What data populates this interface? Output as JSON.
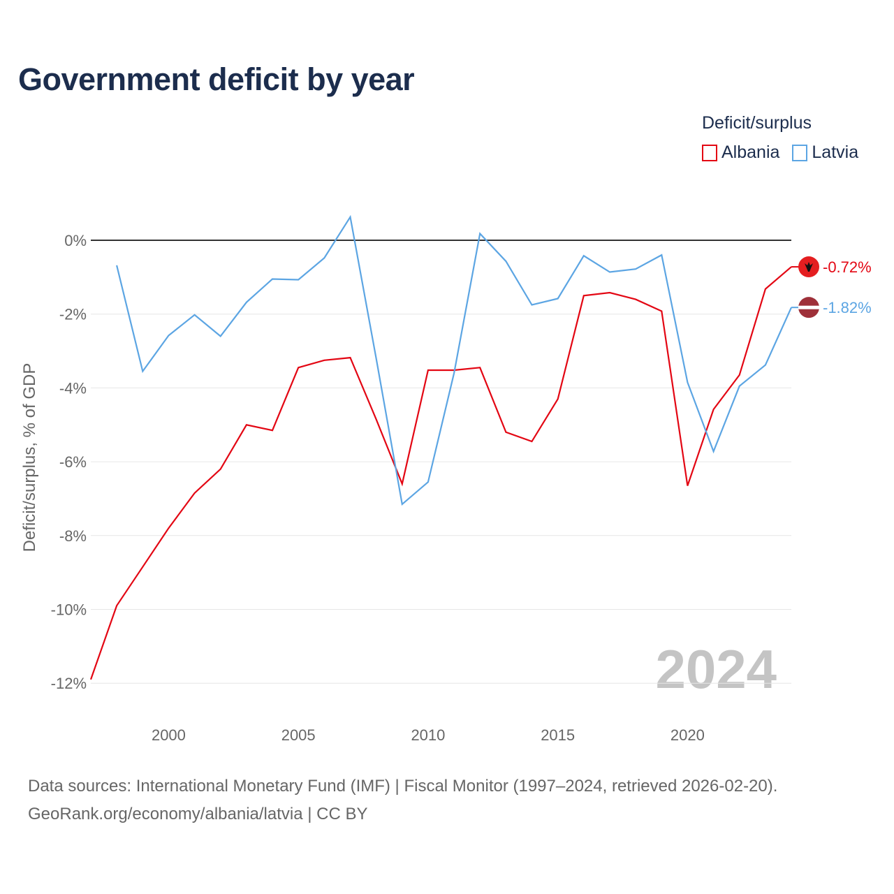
{
  "title": "Government deficit by year",
  "legend": {
    "title": "Deficit/surplus",
    "items": [
      {
        "label": "Albania",
        "color": "#e30613"
      },
      {
        "label": "Latvia",
        "color": "#5ca5e3"
      }
    ]
  },
  "year_watermark": "2024",
  "footer": {
    "line1": "Data sources: International Monetary Fund (IMF) | Fiscal Monitor (1997–2024, retrieved 2026-02-20).",
    "line2": "GeoRank.org/economy/albania/latvia | CC BY"
  },
  "chart_data": {
    "type": "line",
    "title": "Government deficit by year",
    "ylabel": "Deficit/surplus, % of GDP",
    "xlabel": "",
    "xlim": [
      1997,
      2024
    ],
    "ylim": [
      -12.5,
      0.8
    ],
    "x_ticks": [
      2000,
      2005,
      2010,
      2015,
      2020
    ],
    "x_tick_labels": [
      "2000",
      "2005",
      "2010",
      "2015",
      "2020"
    ],
    "y_ticks": [
      0,
      -2,
      -4,
      -6,
      -8,
      -10,
      -12
    ],
    "y_tick_labels": [
      "0%",
      "-2%",
      "-4%",
      "-6%",
      "-8%",
      "-10%",
      "-12%"
    ],
    "grid": true,
    "legend_position": "top-right",
    "series": [
      {
        "name": "Albania",
        "color": "#e30613",
        "end_label": "-0.72%",
        "x": [
          1997,
          1998,
          1999,
          2000,
          2001,
          2002,
          2003,
          2004,
          2005,
          2006,
          2007,
          2008,
          2009,
          2010,
          2011,
          2012,
          2013,
          2014,
          2015,
          2016,
          2017,
          2018,
          2019,
          2020,
          2021,
          2022,
          2023,
          2024
        ],
        "values": [
          -11.9,
          -9.9,
          -8.85,
          -7.8,
          -6.85,
          -6.2,
          -5.0,
          -5.15,
          -3.45,
          -3.25,
          -3.18,
          -4.85,
          -6.6,
          -3.52,
          -3.52,
          -3.45,
          -5.2,
          -5.45,
          -4.3,
          -1.5,
          -1.42,
          -1.6,
          -1.92,
          -6.65,
          -4.58,
          -3.65,
          -1.32,
          -0.72
        ]
      },
      {
        "name": "Latvia",
        "color": "#5ca5e3",
        "end_label": "-1.82%",
        "x": [
          1998,
          1999,
          2000,
          2001,
          2002,
          2003,
          2004,
          2005,
          2006,
          2007,
          2008,
          2009,
          2010,
          2011,
          2012,
          2013,
          2014,
          2015,
          2016,
          2017,
          2018,
          2019,
          2020,
          2021,
          2022,
          2023,
          2024
        ],
        "values": [
          -0.68,
          -3.55,
          -2.58,
          -2.02,
          -2.6,
          -1.68,
          -1.05,
          -1.07,
          -0.48,
          0.63,
          -3.2,
          -7.15,
          -6.55,
          -3.6,
          0.18,
          -0.57,
          -1.75,
          -1.58,
          -0.42,
          -0.86,
          -0.78,
          -0.4,
          -3.85,
          -5.72,
          -3.95,
          -3.38,
          -1.82
        ]
      }
    ]
  }
}
